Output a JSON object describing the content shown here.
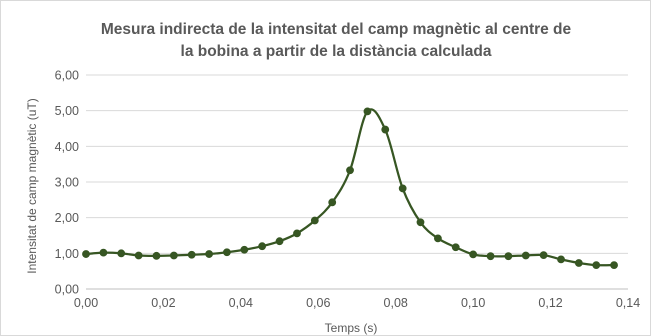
{
  "chart_data": {
    "type": "scatter",
    "title_lines": [
      "Mesura indirecta de la intensitat del camp magnètic al centre de",
      "la bobina a partir de la distància calculada"
    ],
    "xlabel": "Temps (s)",
    "ylabel": "Intensitat de camp magnètic (uT)",
    "xlim": [
      0,
      0.14
    ],
    "ylim": [
      0,
      6
    ],
    "x_ticks": [
      "0,00",
      "0,02",
      "0,04",
      "0,06",
      "0,08",
      "0,10",
      "0,12",
      "0,14"
    ],
    "y_ticks": [
      "0,00",
      "1,00",
      "2,00",
      "3,00",
      "4,00",
      "5,00",
      "6,00"
    ],
    "grid": "horizontal",
    "legend": "none",
    "line_style": "smoothed line with markers",
    "color": "#375623",
    "series": [
      {
        "x": [
          0.0,
          0.0045,
          0.0091,
          0.0136,
          0.0182,
          0.0227,
          0.0273,
          0.0318,
          0.0364,
          0.0409,
          0.0455,
          0.05,
          0.0545,
          0.0591,
          0.0636,
          0.0682,
          0.0727,
          0.0773,
          0.0818,
          0.0864,
          0.0909,
          0.0955,
          0.1,
          0.1045,
          0.1091,
          0.1136,
          0.1182,
          0.1227,
          0.1273,
          0.1318,
          0.1364
        ],
        "y": [
          0.98,
          1.02,
          1.0,
          0.94,
          0.93,
          0.94,
          0.96,
          0.98,
          1.03,
          1.1,
          1.2,
          1.34,
          1.56,
          1.92,
          2.43,
          3.33,
          4.98,
          4.47,
          2.82,
          1.87,
          1.42,
          1.17,
          0.97,
          0.92,
          0.92,
          0.94,
          0.95,
          0.83,
          0.73,
          0.67,
          0.67
        ]
      }
    ]
  }
}
